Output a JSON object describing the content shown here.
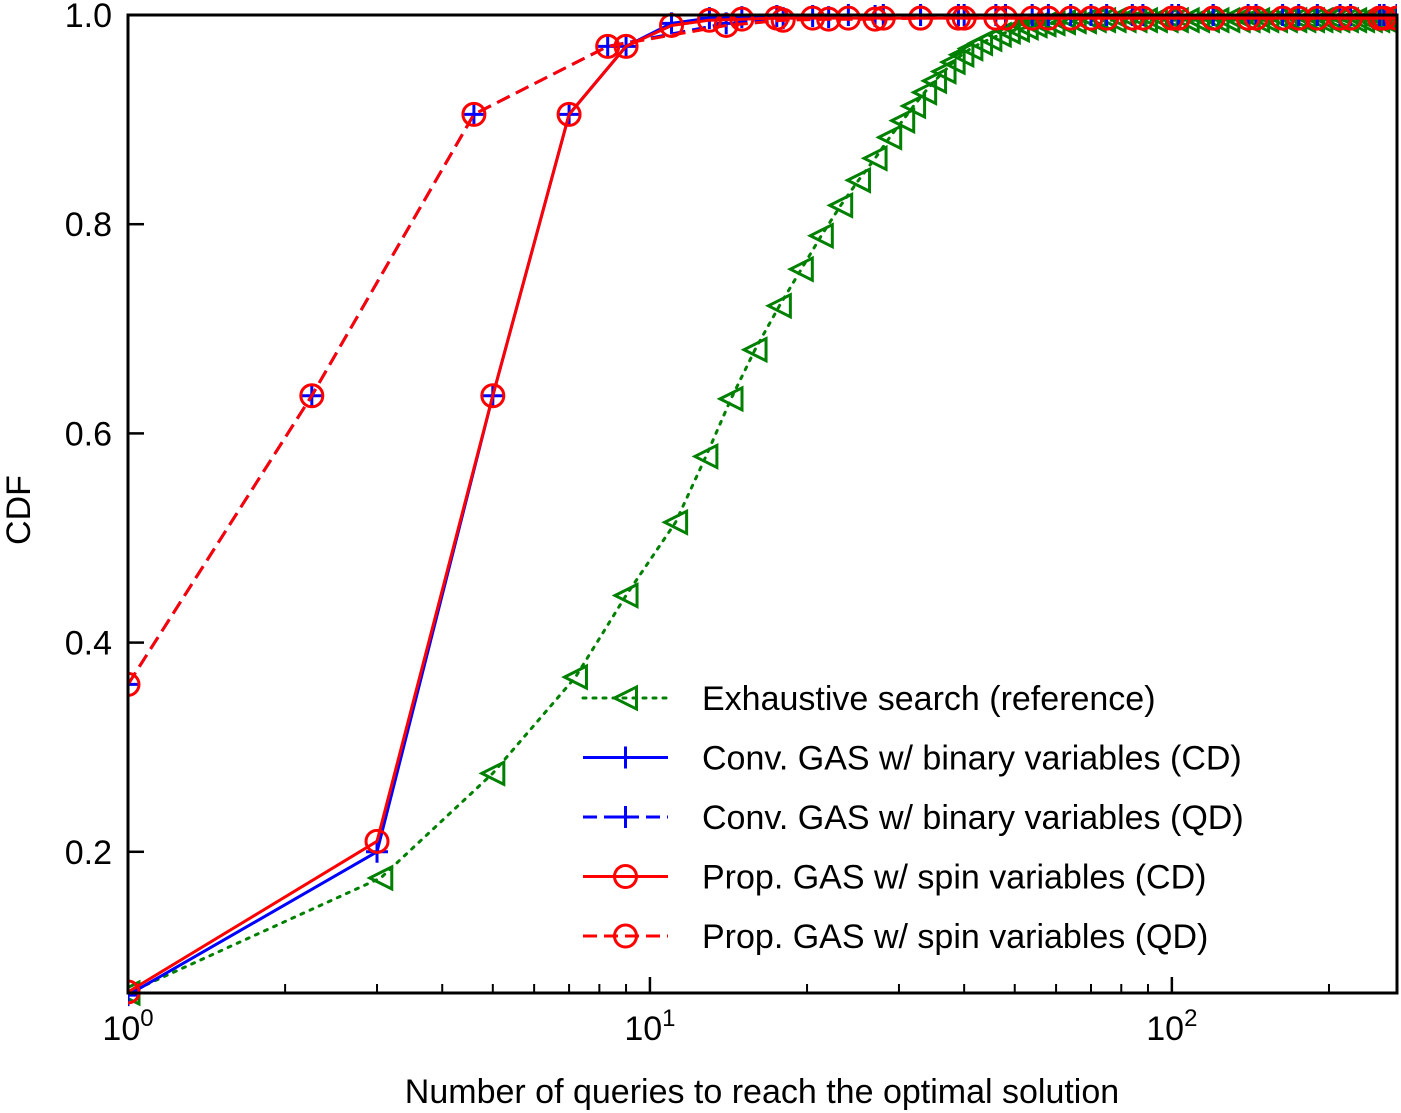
{
  "chart_data": {
    "type": "line",
    "title": "",
    "xlabel": "Number of queries to reach the optimal solution",
    "ylabel": "CDF",
    "xscale": "log",
    "xlim": [
      1,
      270
    ],
    "ylim": [
      0.065,
      1.0
    ],
    "x_ticks": [
      {
        "value": 1,
        "base": "10",
        "exp": "0"
      },
      {
        "value": 10,
        "base": "10",
        "exp": "1"
      },
      {
        "value": 100,
        "base": "10",
        "exp": "2"
      }
    ],
    "y_ticks": [
      {
        "value": 0.2,
        "label": "0.2"
      },
      {
        "value": 0.4,
        "label": "0.4"
      },
      {
        "value": 0.6,
        "label": "0.6"
      },
      {
        "value": 0.8,
        "label": "0.8"
      },
      {
        "value": 1.0,
        "label": "1.0"
      }
    ],
    "grid": false,
    "legend_position": "lower-right",
    "series": [
      {
        "name": "Exhaustive search (reference)",
        "color": "#008000",
        "line_style": "dotted",
        "marker": "triangle-left",
        "x": [
          1.0,
          3.05,
          5.0,
          7.2,
          9.0,
          11.2,
          12.8,
          14.3,
          15.9,
          17.7,
          19.5,
          21.3,
          23.2,
          25.1,
          27.0,
          28.8,
          30.5,
          32.0,
          33.6,
          35.1,
          36.6,
          38.1,
          39.6,
          41.2,
          43.0,
          44.8,
          46.7,
          48.6,
          50.6,
          52.6,
          54.7,
          56.9,
          59.2,
          62.0,
          65.0,
          68.0,
          71.0,
          74.0,
          77.5,
          81.0,
          85.0,
          89.0,
          93.0,
          97.5,
          102.0,
          107.0,
          112.0,
          117.0,
          122.0,
          128.0,
          134.0,
          140.0,
          146.0,
          152.0,
          158.0,
          165.0,
          172.0,
          179.0,
          186.0,
          193.0,
          200.0,
          208.0,
          216.0,
          224.0,
          232.0,
          240.0,
          248.0,
          256.0,
          264.0,
          270.0
        ],
        "y": [
          0.065,
          0.175,
          0.275,
          0.367,
          0.445,
          0.515,
          0.578,
          0.633,
          0.68,
          0.722,
          0.757,
          0.789,
          0.818,
          0.842,
          0.863,
          0.883,
          0.899,
          0.913,
          0.926,
          0.937,
          0.946,
          0.955,
          0.962,
          0.968,
          0.973,
          0.977,
          0.981,
          0.984,
          0.986,
          0.988,
          0.99,
          0.991,
          0.992,
          0.993,
          0.994,
          0.994,
          0.995,
          0.995,
          0.995,
          0.995,
          0.995,
          0.995,
          0.995,
          0.995,
          0.995,
          0.995,
          0.995,
          0.995,
          0.995,
          0.995,
          0.995,
          0.995,
          0.995,
          0.995,
          0.995,
          0.995,
          0.995,
          0.995,
          0.995,
          0.995,
          0.995,
          0.995,
          0.995,
          0.995,
          0.995,
          0.995,
          0.995,
          0.995,
          0.995,
          0.995
        ]
      },
      {
        "name": "Conv. GAS w/ binary variables (CD)",
        "color": "#0000ff",
        "line_style": "solid",
        "marker": "plus",
        "x": [
          1.0,
          3.0,
          5.0,
          7.0,
          9.0,
          11.0,
          13.0,
          15.0,
          17.5,
          20.5,
          24.0,
          28.0,
          33.0,
          39.0,
          46.0,
          54.0,
          64.0,
          75.0,
          88.0,
          103.0,
          120.0,
          140.0,
          163.0,
          190.0,
          220.0,
          255.0,
          270.0
        ],
        "y": [
          0.063,
          0.2,
          0.636,
          0.905,
          0.97,
          0.992,
          0.997,
          0.998,
          0.999,
          0.999,
          1.0,
          1.0,
          1.0,
          1.0,
          1.0,
          1.0,
          1.0,
          1.0,
          1.0,
          1.0,
          1.0,
          1.0,
          1.0,
          1.0,
          1.0,
          1.0,
          1.0
        ]
      },
      {
        "name": "Conv. GAS w/ binary variables (QD)",
        "color": "#0000ff",
        "line_style": "dashed",
        "marker": "plus",
        "x": [
          1.0,
          2.25,
          4.6,
          8.3,
          14.0,
          18.0,
          22.0,
          27.0,
          33.0,
          40.0,
          48.0,
          58.0,
          70.0,
          84.0,
          100.0,
          120.0,
          145.0,
          175.0,
          210.0,
          250.0,
          270.0
        ],
        "y": [
          0.36,
          0.636,
          0.905,
          0.97,
          0.992,
          0.997,
          0.998,
          0.999,
          1.0,
          1.0,
          1.0,
          1.0,
          1.0,
          1.0,
          1.0,
          1.0,
          1.0,
          1.0,
          1.0,
          1.0,
          1.0
        ]
      },
      {
        "name": "Prop. GAS w/ spin variables (CD)",
        "color": "#ff0000",
        "line_style": "solid",
        "marker": "circle",
        "x": [
          1.0,
          3.0,
          5.0,
          7.0,
          9.0,
          11.0,
          13.0,
          15.0,
          17.5,
          20.5,
          24.0,
          28.0,
          33.0,
          39.0,
          46.0,
          54.0,
          64.0,
          75.0,
          88.0,
          103.0,
          120.0,
          140.0,
          163.0,
          190.0,
          220.0,
          255.0,
          270.0
        ],
        "y": [
          0.066,
          0.21,
          0.636,
          0.905,
          0.97,
          0.99,
          0.995,
          0.996,
          0.997,
          0.997,
          0.997,
          0.997,
          0.997,
          0.997,
          0.997,
          0.997,
          0.997,
          0.997,
          0.997,
          0.997,
          0.997,
          0.997,
          0.997,
          0.997,
          0.997,
          0.997,
          0.997
        ]
      },
      {
        "name": "Prop. GAS w/ spin variables (QD)",
        "color": "#ff0000",
        "line_style": "dashed",
        "marker": "circle",
        "x": [
          1.0,
          2.25,
          4.6,
          8.3,
          14.0,
          18.0,
          22.0,
          27.0,
          33.0,
          40.0,
          48.0,
          58.0,
          70.0,
          84.0,
          100.0,
          120.0,
          145.0,
          175.0,
          210.0,
          250.0,
          270.0
        ],
        "y": [
          0.36,
          0.636,
          0.905,
          0.97,
          0.99,
          0.995,
          0.996,
          0.996,
          0.997,
          0.997,
          0.997,
          0.997,
          0.997,
          0.997,
          0.997,
          0.997,
          0.997,
          0.997,
          0.997,
          0.997,
          0.997
        ]
      }
    ]
  }
}
